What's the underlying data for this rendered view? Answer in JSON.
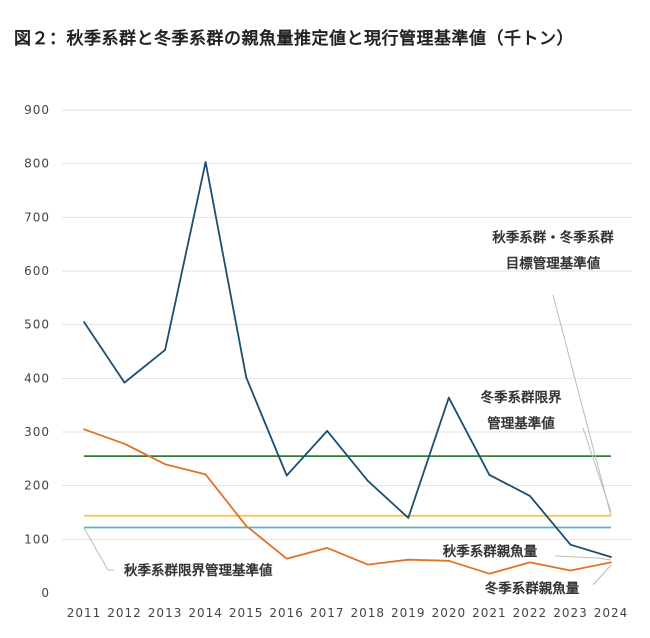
{
  "chart_data": {
    "type": "line",
    "title": "図２：秋季系群と冬季系群の親魚量推定値と現行管理基準値（千トン）",
    "xlabel": "",
    "ylabel": "",
    "ylim": [
      0,
      900
    ],
    "yticks": [
      0,
      100,
      200,
      300,
      400,
      500,
      600,
      700,
      800,
      900
    ],
    "grid": true,
    "categories": [
      "2011",
      "2012",
      "2013",
      "2014",
      "2015",
      "2016",
      "2017",
      "2018",
      "2019",
      "2020",
      "2021",
      "2022",
      "2023",
      "2024"
    ],
    "series": [
      {
        "name": "秋季系群親魚量",
        "color": "#1b4f72",
        "values": [
          505,
          392,
          453,
          803,
          402,
          219,
          302,
          209,
          140,
          364,
          220,
          181,
          90,
          67
        ]
      },
      {
        "name": "冬季系群親魚量",
        "color": "#e07328",
        "values": [
          305,
          278,
          240,
          221,
          125,
          64,
          84,
          53,
          62,
          60,
          36,
          57,
          42,
          57
        ]
      }
    ],
    "reference_lines": [
      {
        "name": "秋季系群・冬季系群目標管理基準値",
        "value": 255,
        "color": "#2e7d32"
      },
      {
        "name": "冬季系群限界管理基準値",
        "value": 144,
        "color": "#f4c542"
      },
      {
        "name": "秋季系群限界管理基準値",
        "value": 122,
        "color": "#4fb8c4"
      }
    ],
    "annotations": [
      {
        "id": "target",
        "lines": [
          "秋季系群・冬季系群",
          "目標管理基準値"
        ]
      },
      {
        "id": "winter-limit",
        "lines": [
          "冬季系群限界",
          "管理基準値"
        ]
      },
      {
        "id": "autumn-limit",
        "lines": [
          "秋季系群限界管理基準値"
        ]
      },
      {
        "id": "autumn-ssb",
        "lines": [
          "秋季系群親魚量"
        ]
      },
      {
        "id": "winter-ssb",
        "lines": [
          "冬季系群親魚量"
        ]
      }
    ]
  }
}
